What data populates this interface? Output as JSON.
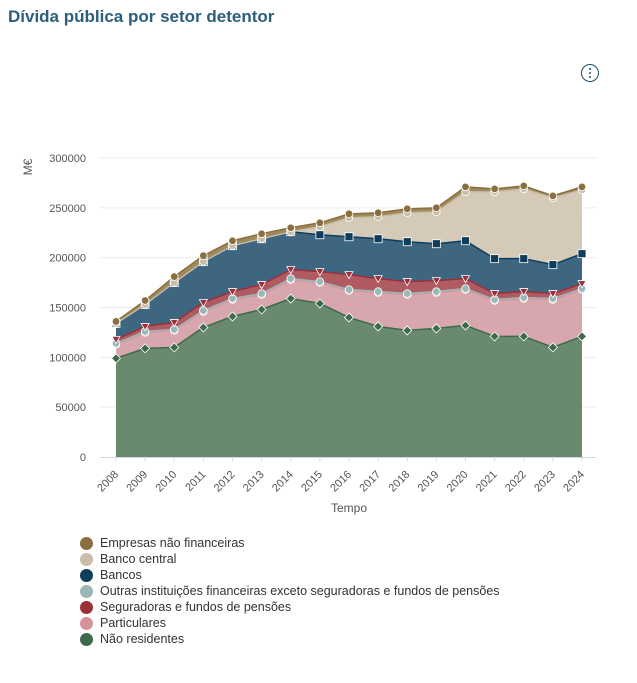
{
  "page": {
    "title": "Dívida pública por setor detentor"
  },
  "chart_data": {
    "type": "area",
    "stacked": true,
    "title": "Dívida pública por setor detentor",
    "xlabel": "Tempo",
    "ylabel": "M€",
    "ylim": [
      0,
      300000
    ],
    "yticks": [
      0,
      50000,
      100000,
      150000,
      200000,
      250000,
      300000
    ],
    "grid": true,
    "legend_position": "bottom",
    "categories": [
      "2008",
      "2009",
      "2010",
      "2011",
      "2012",
      "2013",
      "2014",
      "2015",
      "2016",
      "2017",
      "2018",
      "2019",
      "2020",
      "2021",
      "2022",
      "2023",
      "2024"
    ],
    "series": [
      {
        "name": "Não residentes",
        "color": "#3c6a4b",
        "fill": "#6a8a6e",
        "marker": "diamond",
        "values": [
          99000,
          109000,
          110000,
          130000,
          141000,
          148000,
          159000,
          154000,
          140000,
          131000,
          127000,
          129000,
          132000,
          121000,
          121000,
          110000,
          121000
        ]
      },
      {
        "name": "Particulares",
        "color": "#d4929a",
        "fill": "#d8a7ad",
        "marker": "circle",
        "values": [
          14000,
          16000,
          17000,
          16000,
          17000,
          15000,
          19000,
          21000,
          27000,
          34000,
          36000,
          36000,
          36000,
          36000,
          38000,
          48000,
          47000
        ]
      },
      {
        "name": "Outras instituições financeiras exceto seguradoras e fundos de pensões",
        "color": "#9bb8b8",
        "fill": "#b5cbcb",
        "marker": "circle",
        "values": [
          1000,
          1000,
          1000,
          1000,
          1000,
          1000,
          1000,
          1000,
          1000,
          1000,
          1000,
          1000,
          1000,
          1000,
          1000,
          1000,
          1000
        ]
      },
      {
        "name": "Seguradoras e fundos de pensões",
        "color": "#9b2f3a",
        "fill": "#b05a62",
        "marker": "triangle-down",
        "values": [
          4000,
          5000,
          7000,
          8000,
          7000,
          9000,
          9000,
          10000,
          15000,
          13000,
          12000,
          11000,
          10000,
          6000,
          6000,
          5000,
          5000
        ]
      },
      {
        "name": "Bancos",
        "color": "#0f3d5c",
        "fill": "#3e6681",
        "marker": "square",
        "values": [
          16000,
          22000,
          40000,
          41000,
          46000,
          46000,
          38000,
          37000,
          38000,
          40000,
          40000,
          37000,
          38000,
          35000,
          33000,
          29000,
          30000
        ]
      },
      {
        "name": "Banco central",
        "color": "#c8bda8",
        "fill": "#d5cab7",
        "marker": "circle",
        "values": [
          0,
          0,
          0,
          0,
          0,
          0,
          0,
          8000,
          19000,
          22000,
          29000,
          32000,
          49000,
          67000,
          70000,
          67000,
          64000
        ]
      },
      {
        "name": "Empresas não financeiras",
        "color": "#8a6e3f",
        "fill": "#a08a5c",
        "marker": "circle",
        "values": [
          2000,
          4000,
          6000,
          6000,
          5000,
          5000,
          4000,
          4000,
          4000,
          4000,
          4000,
          4000,
          5000,
          3000,
          3000,
          2000,
          3000
        ]
      }
    ],
    "legend_order": [
      "Empresas não financeiras",
      "Banco central",
      "Bancos",
      "Outras instituições financeiras exceto seguradoras e fundos de pensões",
      "Seguradoras e fundos de pensões",
      "Particulares",
      "Não residentes"
    ]
  }
}
